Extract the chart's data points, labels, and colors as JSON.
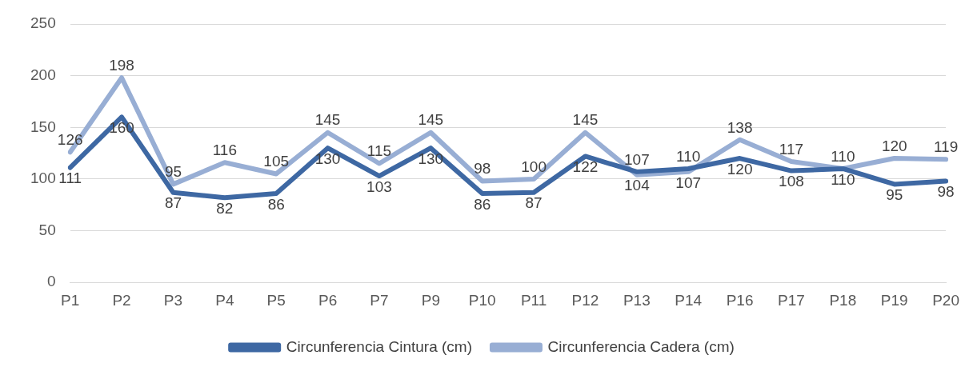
{
  "chart_data": {
    "type": "line",
    "categories": [
      "P1",
      "P2",
      "P3",
      "P4",
      "P5",
      "P6",
      "P7",
      "P9",
      "P10",
      "P11",
      "P12",
      "P13",
      "P14",
      "P16",
      "P17",
      "P18",
      "P19",
      "P20"
    ],
    "series": [
      {
        "name": "Circunferencia Cintura (cm)",
        "color": "#3e68a3",
        "values": [
          111,
          160,
          87,
          82,
          86,
          130,
          103,
          130,
          86,
          87,
          122,
          107,
          110,
          120,
          108,
          110,
          95,
          98
        ]
      },
      {
        "name": "Circunferencia Cadera (cm)",
        "color": "#98aed4",
        "values": [
          126,
          198,
          95,
          116,
          105,
          145,
          115,
          145,
          98,
          100,
          145,
          104,
          107,
          138,
          117,
          110,
          120,
          119
        ]
      }
    ],
    "ylim": [
      0,
      250
    ],
    "yticks": [
      0,
      50,
      100,
      150,
      200,
      250
    ],
    "grid": "y",
    "legend": "bottom",
    "data_labels": true,
    "marker": "none",
    "line_style": "solid"
  }
}
